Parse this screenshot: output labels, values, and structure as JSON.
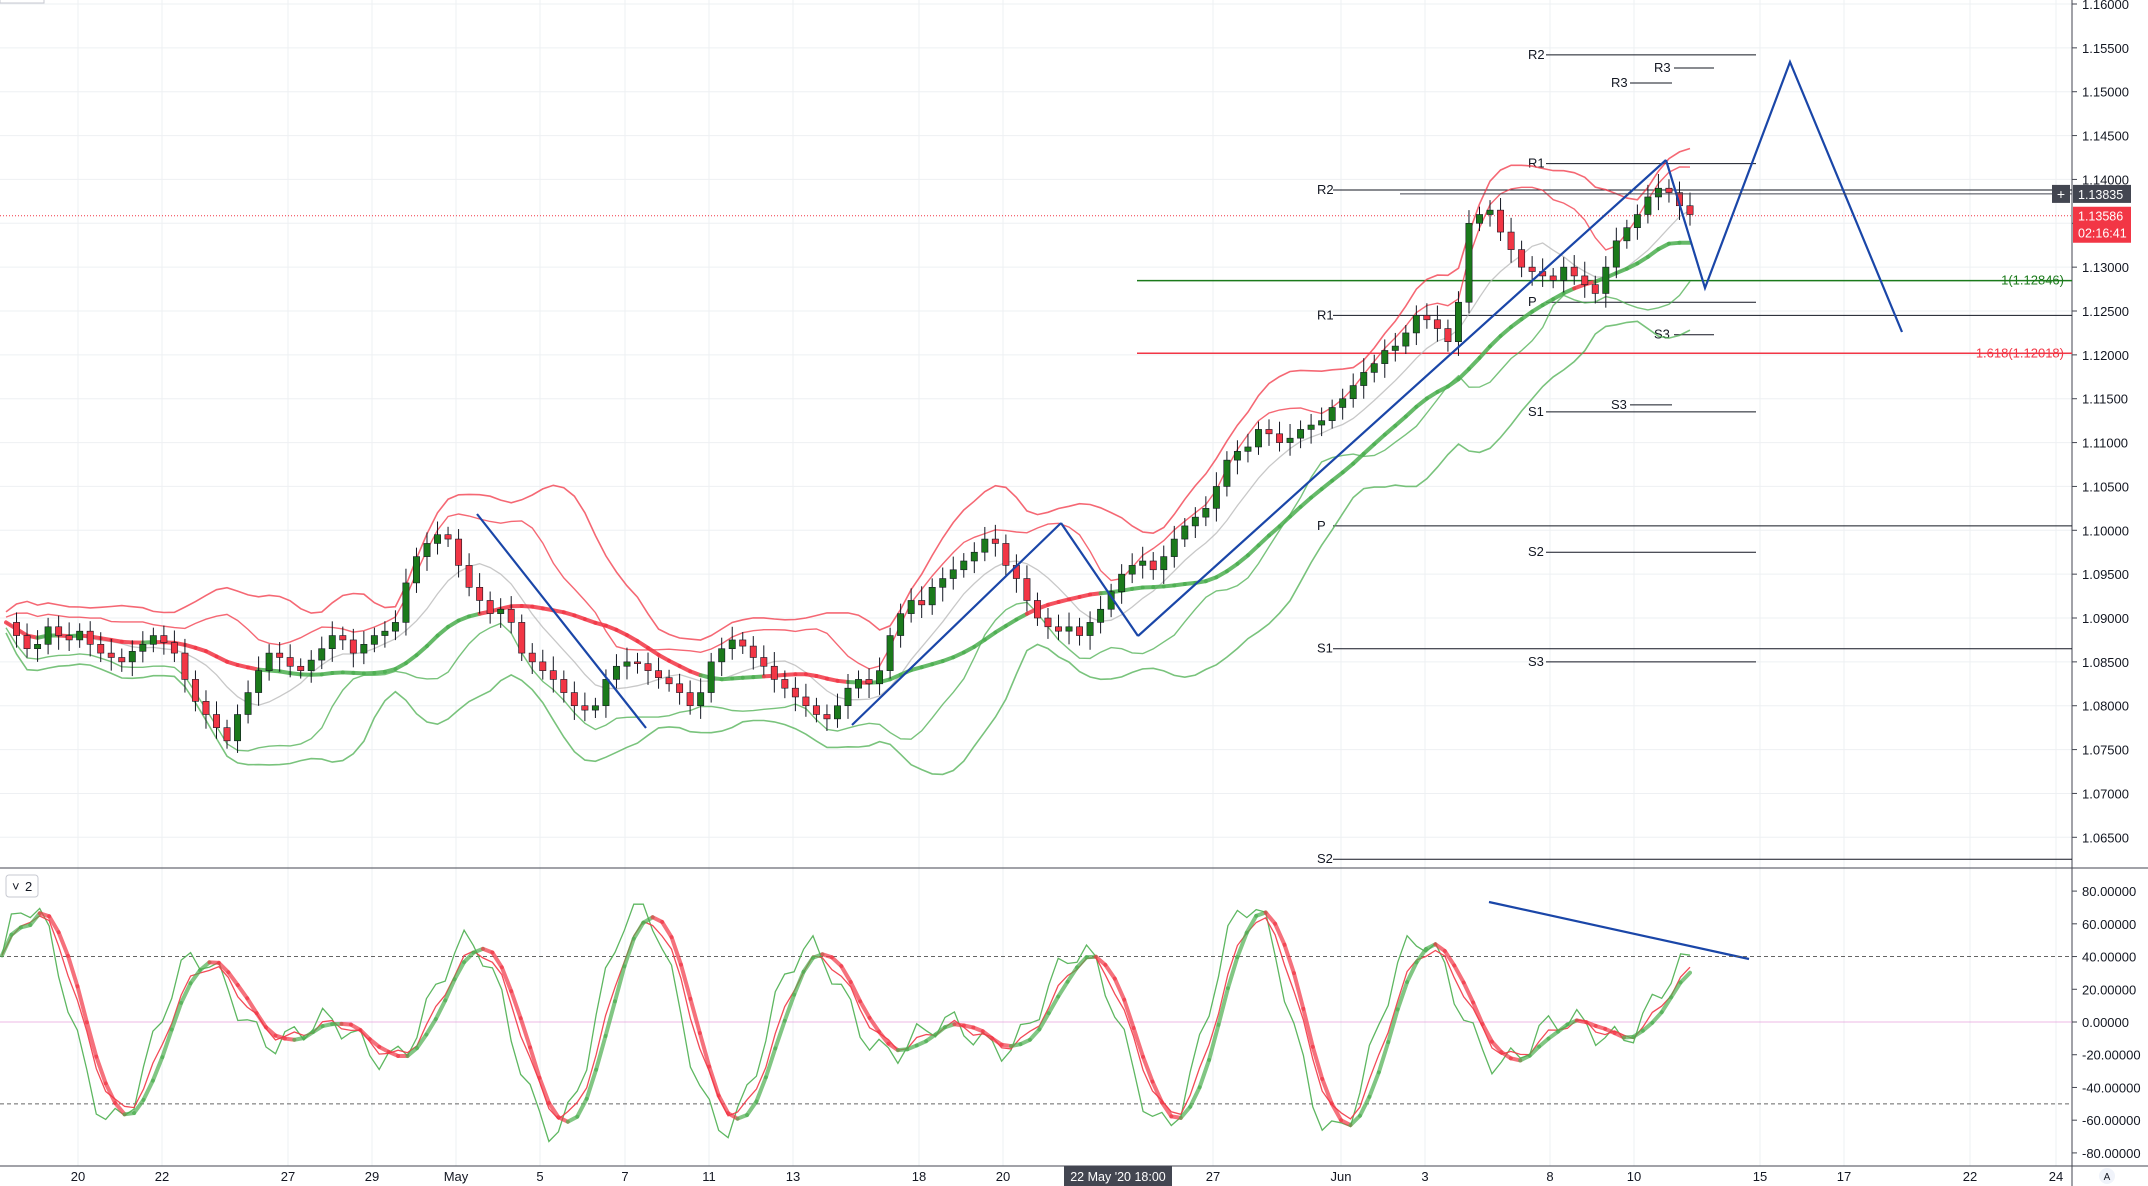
{
  "chart_data": [
    {
      "type": "candlestick",
      "instrument_price_scale": {
        "ylim": [
          1.0615,
          1.16
        ],
        "ticks": [
          "1.06500",
          "1.07000",
          "1.07500",
          "1.08000",
          "1.08500",
          "1.09000",
          "1.09500",
          "1.10000",
          "1.10500",
          "1.11000",
          "1.11500",
          "1.12000",
          "1.12500",
          "1.13000",
          "1.13500",
          "1.14000",
          "1.14500",
          "1.15000",
          "1.15500",
          "1.16000"
        ]
      },
      "time_axis": {
        "labels": [
          "20",
          "22",
          "27",
          "29",
          "May",
          "5",
          "7",
          "11",
          "13",
          "18",
          "20",
          "27",
          "Jun",
          "3",
          "8",
          "10",
          "15",
          "17",
          "22",
          "24"
        ],
        "crosshair_label": "22 May '20   18:00"
      },
      "price_badges": {
        "crosshair_price": "1.13835",
        "last_price": "1.13586",
        "countdown": "02:16:41",
        "crosshair_value": 1.13835,
        "last_value": 1.13586
      },
      "fibonacci_levels": [
        {
          "label": "1(1.12846)",
          "value": 1.12846,
          "color": "#1b7a1b"
        },
        {
          "label": "1.618(1.12018)",
          "value": 1.12018,
          "color": "#f23645"
        }
      ],
      "pivot_levels": [
        {
          "label": "R2",
          "value": 1.1388
        },
        {
          "label": "R1",
          "value": 1.1245
        },
        {
          "label": "P",
          "value": 1.1005
        },
        {
          "label": "S1",
          "value": 1.0865
        },
        {
          "label": "S2",
          "value": 1.0625
        },
        {
          "label": "R2",
          "value": 1.1542
        },
        {
          "label": "R1",
          "value": 1.1418
        },
        {
          "label": "P",
          "value": 1.126
        },
        {
          "label": "S1",
          "value": 1.1135
        },
        {
          "label": "S2",
          "value": 1.0975
        },
        {
          "label": "S3",
          "value": 1.085
        },
        {
          "label": "R3",
          "value": 1.1527
        },
        {
          "label": "R3",
          "value": 1.151
        },
        {
          "label": "S3",
          "value": 1.1223
        },
        {
          "label": "S3",
          "value": 1.1143
        }
      ],
      "price_path": [
        1.0895,
        1.088,
        1.0865,
        1.087,
        1.089,
        1.088,
        1.0875,
        1.0885,
        1.087,
        1.086,
        1.0855,
        1.085,
        1.0862,
        1.087,
        1.088,
        1.0872,
        1.086,
        1.083,
        1.0805,
        1.079,
        1.0775,
        1.076,
        1.079,
        1.0815,
        1.084,
        1.086,
        1.0855,
        1.0845,
        1.084,
        1.0852,
        1.0865,
        1.088,
        1.0875,
        1.086,
        1.087,
        1.088,
        1.0885,
        1.0895,
        1.094,
        1.097,
        1.0985,
        1.0995,
        1.099,
        1.096,
        1.0935,
        1.092,
        1.0905,
        1.091,
        1.0895,
        1.086,
        1.085,
        1.084,
        1.083,
        1.0815,
        1.08,
        1.0795,
        1.08,
        1.083,
        1.0845,
        1.085,
        1.0848,
        1.084,
        1.0832,
        1.0825,
        1.0815,
        1.08,
        1.0815,
        1.085,
        1.0865,
        1.0875,
        1.0868,
        1.0855,
        1.0845,
        1.083,
        1.082,
        1.081,
        1.08,
        1.079,
        1.0785,
        1.08,
        1.082,
        1.083,
        1.0825,
        1.084,
        1.088,
        1.0905,
        1.092,
        1.0915,
        1.0935,
        1.0945,
        1.0955,
        1.0965,
        1.0975,
        1.099,
        1.0985,
        1.096,
        1.0945,
        1.092,
        1.09,
        1.089,
        1.0885,
        1.089,
        1.088,
        1.0895,
        1.091,
        1.093,
        1.095,
        1.096,
        1.0965,
        1.0955,
        1.097,
        1.099,
        1.1005,
        1.1015,
        1.1025,
        1.105,
        1.108,
        1.109,
        1.1095,
        1.1115,
        1.111,
        1.11,
        1.1105,
        1.1115,
        1.112,
        1.1125,
        1.114,
        1.115,
        1.1165,
        1.118,
        1.119,
        1.1205,
        1.121,
        1.1225,
        1.1245,
        1.124,
        1.123,
        1.1215,
        1.126,
        1.135,
        1.136,
        1.1365,
        1.134,
        1.132,
        1.13,
        1.1295,
        1.129,
        1.1285,
        1.13,
        1.129,
        1.128,
        1.127,
        1.13,
        1.133,
        1.1345,
        1.136,
        1.138,
        1.139,
        1.1385,
        1.137,
        1.136
      ],
      "moving_averages": [
        {
          "color": "#f23645"
        },
        {
          "color": "#4caf50"
        },
        {
          "color": "#b0b0b0"
        }
      ],
      "trendlines_color": "#1a46a8"
    },
    {
      "type": "line",
      "panel_label": "2",
      "ylim": [
        -88,
        88
      ],
      "ticks": [
        "80.00000",
        "60.00000",
        "40.00000",
        "20.00000",
        "0.00000",
        "-20.00000",
        "-40.00000",
        "-60.00000",
        "-80.00000"
      ],
      "reference_lines": [
        40,
        0,
        -50
      ],
      "series_colors": [
        "#4caf50",
        "#f23645"
      ]
    }
  ]
}
